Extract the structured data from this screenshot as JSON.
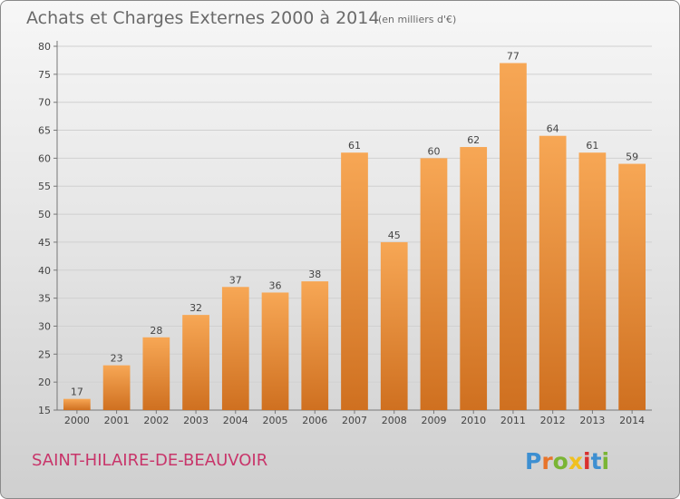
{
  "header": {
    "title": "Achats et Charges Externes 2000 à 2014",
    "unit": "(en milliers d'€)"
  },
  "footer": {
    "commune": "SAINT-HILAIRE-DE-BEAUVOIR",
    "logo": "Proxiti"
  },
  "colors": {
    "bar_light": "#f7a755",
    "bar_dark": "#cf7020",
    "logo_letters": [
      "#3d8fd1",
      "#e8742a",
      "#7ab534",
      "#f0c020",
      "#d9302e",
      "#3d8fd1",
      "#7ab534"
    ]
  },
  "chart_data": {
    "type": "bar",
    "title": "Achats et Charges Externes 2000 à 2014",
    "subtitle": "(en milliers d'€)",
    "xlabel": "",
    "ylabel": "",
    "categories": [
      "2000",
      "2001",
      "2002",
      "2003",
      "2004",
      "2005",
      "2006",
      "2007",
      "2008",
      "2009",
      "2010",
      "2011",
      "2012",
      "2013",
      "2014"
    ],
    "values": [
      17,
      23,
      28,
      32,
      37,
      36,
      38,
      61,
      45,
      60,
      62,
      77,
      64,
      61,
      59
    ],
    "ylim": [
      15,
      80
    ],
    "yticks": [
      15,
      20,
      25,
      30,
      35,
      40,
      45,
      50,
      55,
      60,
      65,
      70,
      75,
      80
    ],
    "grid": true,
    "data_labels": true
  }
}
